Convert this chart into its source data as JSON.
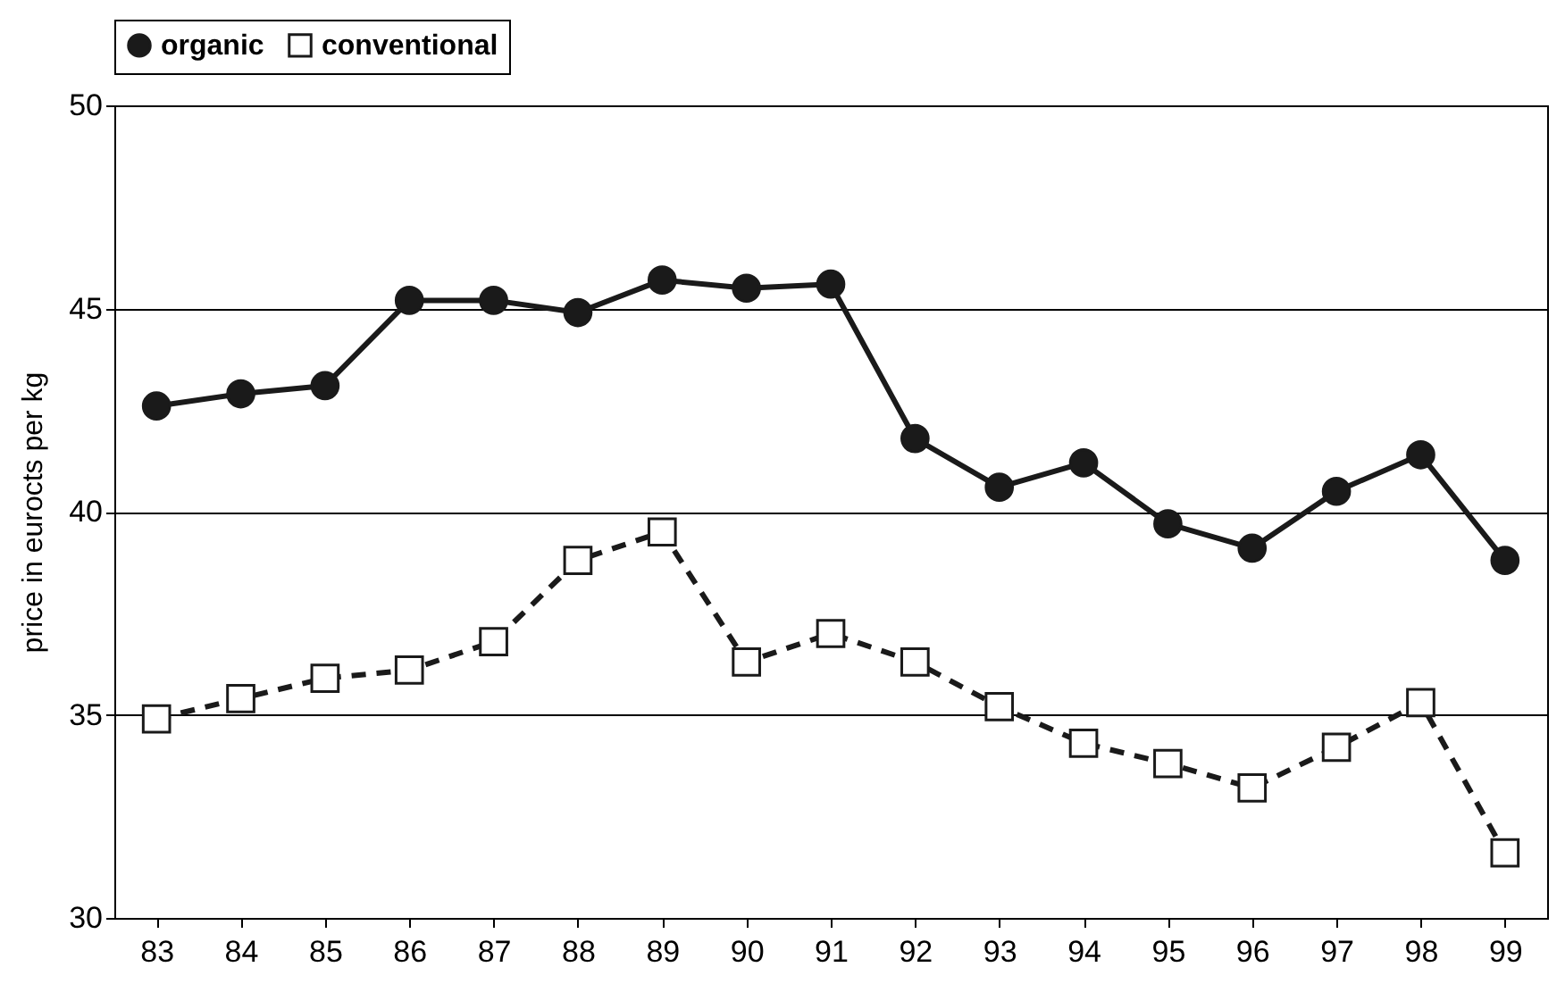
{
  "chart_data": {
    "type": "line",
    "ylabel": "price in eurocts per kg",
    "categories": [
      "83",
      "84",
      "85",
      "86",
      "87",
      "88",
      "89",
      "90",
      "91",
      "92",
      "93",
      "94",
      "95",
      "96",
      "97",
      "98",
      "99"
    ],
    "series": [
      {
        "name": "organic",
        "color": "#1a1a1a",
        "marker": "circle",
        "line_style": "solid",
        "values": [
          42.6,
          42.9,
          43.1,
          45.2,
          45.2,
          44.9,
          45.7,
          45.5,
          45.6,
          41.8,
          40.6,
          41.2,
          39.7,
          39.1,
          40.5,
          41.4,
          38.8
        ]
      },
      {
        "name": "conventional",
        "color": "#1a1a1a",
        "marker": "square",
        "line_style": "dashed",
        "values": [
          34.9,
          35.4,
          35.9,
          36.1,
          36.8,
          38.8,
          39.5,
          36.3,
          37.0,
          36.3,
          35.2,
          34.3,
          33.8,
          33.2,
          34.2,
          35.3,
          31.6
        ]
      }
    ],
    "ylim": [
      30,
      50
    ],
    "yticks": [
      30,
      35,
      40,
      45,
      50
    ],
    "grid": "y",
    "legend": "top"
  }
}
